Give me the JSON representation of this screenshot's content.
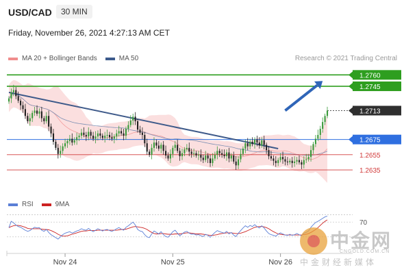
{
  "header": {
    "symbol": "USD/CAD",
    "timeframe": "30 MIN",
    "timestamp": "Friday, November 26, 2021 4:27:13 AM CET",
    "credit": "Research © 2021 Trading Central"
  },
  "legend": {
    "bollinger_label": "MA 20 + Bollinger Bands",
    "ma50_label": "MA 50",
    "bollinger_color": "#f08d8d",
    "ma50_color": "#3c5a8c"
  },
  "rsi_legend": {
    "rsi_label": "RSI",
    "ma_label": "9MA",
    "rsi_color": "#5b7fd6",
    "ma_color": "#cc2222"
  },
  "watermark": {
    "title": "中金网",
    "domain": "CNGOLD.COM.CN",
    "subtitle": "中金财经新媒体"
  },
  "chart_data": {
    "type": "candlestick",
    "ylim": [
      1.2608,
      1.2772
    ],
    "x_ticks": [
      "Nov 24",
      "Nov 25",
      "Nov 26"
    ],
    "levels": [
      {
        "value": 1.276,
        "label": "1.2760",
        "kind": "resistance",
        "color": "#2e9e1f"
      },
      {
        "value": 1.2745,
        "label": "1.2745",
        "kind": "resistance",
        "color": "#2e9e1f"
      },
      {
        "value": 1.2713,
        "label": "1.2713",
        "kind": "current",
        "color": "#333333"
      },
      {
        "value": 1.2675,
        "label": "1.2675",
        "kind": "pivot",
        "color": "#2f6fe0"
      },
      {
        "value": 1.2655,
        "label": "1.2655",
        "kind": "support",
        "color": "#d23b3b"
      },
      {
        "value": 1.2635,
        "label": "1.2635",
        "kind": "support",
        "color": "#d23b3b"
      }
    ],
    "closes": [
      1.2729,
      1.2737,
      1.274,
      1.2732,
      1.2726,
      1.272,
      1.2715,
      1.2706,
      1.2699,
      1.2703,
      1.271,
      1.2713,
      1.2709,
      1.2712,
      1.2703,
      1.2699,
      1.2706,
      1.2692,
      1.2683,
      1.2672,
      1.2664,
      1.2656,
      1.266,
      1.2666,
      1.267,
      1.2673,
      1.2676,
      1.2671,
      1.2674,
      1.2678,
      1.268,
      1.2684,
      1.2681,
      1.2679,
      1.2685,
      1.268,
      1.2676,
      1.2679,
      1.2683,
      1.268,
      1.2677,
      1.268,
      1.2681,
      1.2678,
      1.2676,
      1.2679,
      1.2683,
      1.2686,
      1.2683,
      1.268,
      1.2689,
      1.2694,
      1.27,
      1.2705,
      1.2699,
      1.2688,
      1.2684,
      1.2681,
      1.267,
      1.2659,
      1.2655,
      1.2664,
      1.2671,
      1.2667,
      1.2663,
      1.2668,
      1.266,
      1.2654,
      1.265,
      1.2656,
      1.2664,
      1.2668,
      1.266,
      1.2653,
      1.2657,
      1.2662,
      1.2664,
      1.2659,
      1.2656,
      1.2657,
      1.2654,
      1.2655,
      1.2651,
      1.2648,
      1.2654,
      1.265,
      1.2644,
      1.265,
      1.2655,
      1.266,
      1.2657,
      1.2655,
      1.2653,
      1.2658,
      1.265,
      1.2654,
      1.2646,
      1.2641,
      1.2649,
      1.2656,
      1.2663,
      1.267,
      1.2666,
      1.2672,
      1.2669,
      1.2675,
      1.2671,
      1.2667,
      1.2674,
      1.2668,
      1.2661,
      1.2653,
      1.265,
      1.2647,
      1.2644,
      1.2648,
      1.2652,
      1.2649,
      1.2646,
      1.2645,
      1.2647,
      1.2644,
      1.2646,
      1.2648,
      1.2645,
      1.2642,
      1.2648,
      1.2649,
      1.2652,
      1.2661,
      1.2669,
      1.2676,
      1.2681,
      1.2689,
      1.2698,
      1.2706,
      1.2713
    ],
    "trendline": [
      [
        0,
        1.2737
      ],
      [
        115,
        1.2663
      ]
    ],
    "forecast_arrow": [
      [
        118,
        1.2713
      ],
      [
        134,
        1.2752
      ]
    ],
    "rsi": {
      "ticks": [
        70
      ],
      "values": [
        55,
        72,
        68,
        62,
        58,
        56,
        52,
        48,
        45,
        47,
        52,
        56,
        54,
        55,
        48,
        45,
        50,
        42,
        36,
        32,
        28,
        24,
        30,
        36,
        40,
        42,
        44,
        40,
        43,
        46,
        48,
        52,
        49,
        48,
        53,
        48,
        44,
        48,
        52,
        49,
        46,
        49,
        50,
        47,
        45,
        48,
        52,
        55,
        51,
        48,
        56,
        60,
        65,
        70,
        62,
        50,
        46,
        44,
        36,
        30,
        28,
        38,
        46,
        42,
        38,
        44,
        36,
        31,
        29,
        36,
        44,
        48,
        40,
        33,
        38,
        43,
        45,
        40,
        37,
        38,
        35,
        36,
        33,
        31,
        37,
        34,
        29,
        36,
        42,
        47,
        44,
        42,
        40,
        45,
        38,
        42,
        35,
        31,
        40,
        47,
        54,
        60,
        56,
        61,
        58,
        63,
        58,
        54,
        60,
        54,
        46,
        39,
        36,
        34,
        32,
        37,
        41,
        38,
        35,
        34,
        37,
        34,
        36,
        39,
        36,
        33,
        40,
        42,
        46,
        56,
        63,
        69,
        72,
        76,
        80,
        84,
        86
      ],
      "ma9": [
        55,
        58,
        60,
        61,
        61,
        60,
        58,
        56,
        53,
        52,
        52,
        52,
        52,
        52,
        51,
        50,
        50,
        49,
        47,
        44,
        41,
        37,
        34,
        32,
        32,
        33,
        35,
        37,
        39,
        41,
        43,
        45,
        46,
        46,
        47,
        47,
        47,
        47,
        48,
        48,
        48,
        48,
        48,
        48,
        48,
        48,
        48,
        49,
        50,
        50,
        51,
        53,
        55,
        57,
        58,
        57,
        56,
        55,
        53,
        50,
        46,
        42,
        39,
        38,
        38,
        39,
        39,
        38,
        37,
        37,
        37,
        38,
        38,
        38,
        39,
        40,
        41,
        41,
        40,
        39,
        38,
        38,
        38,
        37,
        36,
        35,
        34,
        34,
        35,
        36,
        38,
        39,
        40,
        41,
        41,
        41,
        40,
        39,
        39,
        40,
        42,
        44,
        47,
        50,
        53,
        56,
        57,
        58,
        58,
        57,
        55,
        52,
        48,
        44,
        41,
        38,
        37,
        36,
        35,
        35,
        35,
        35,
        35,
        35,
        35,
        35,
        36,
        37,
        39,
        42,
        46,
        50,
        55,
        61,
        67,
        72,
        76
      ]
    }
  }
}
